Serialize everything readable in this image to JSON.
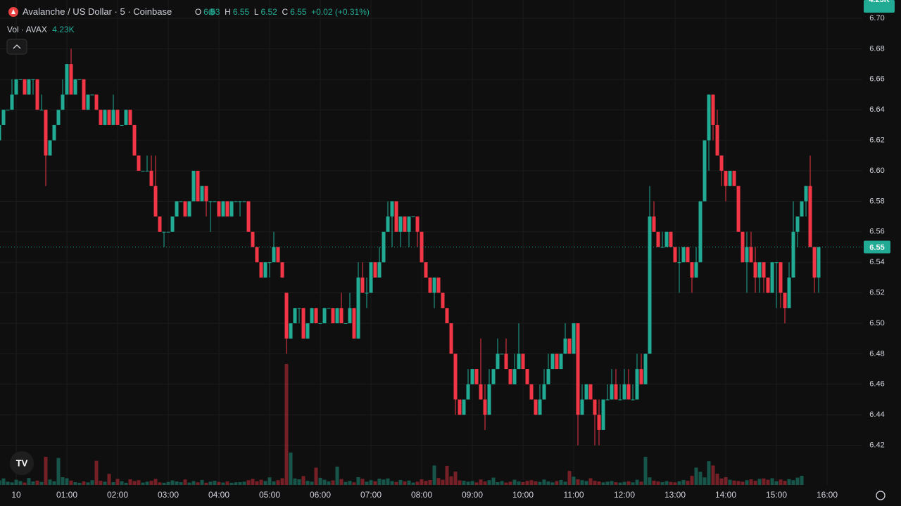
{
  "chart_data": {
    "type": "candlestick",
    "header": {
      "symbol": "Avalanche / US Dollar · 5 · Coinbase",
      "o": "O",
      "h": "H",
      "l": "L",
      "c": "C",
      "change": "+0.02 (+0.31%)",
      "vol_label": "Vol · AVAX",
      "vol_value": "4.23K"
    },
    "up_color": "#22ab94",
    "down_color": "#f23645",
    "grid": true,
    "ylim": [
      6.394,
      6.712
    ],
    "yticks": [
      6.42,
      6.44,
      6.46,
      6.48,
      {
        "value": 6.5,
        "label": "6.50"
      },
      6.52,
      6.54,
      6.56,
      6.58,
      {
        "value": 6.6,
        "label": "6.60"
      },
      6.62,
      6.64,
      6.66,
      6.68,
      {
        "value": 6.7,
        "label": "6.70"
      }
    ],
    "xlim": [
      0.1667,
      204.33
    ],
    "xticks": [
      {
        "value": 4,
        "label": "10"
      },
      {
        "value": 16,
        "label": "01:00"
      },
      {
        "value": 28,
        "label": "02:00"
      },
      {
        "value": 40,
        "label": "03:00"
      },
      {
        "value": 52,
        "label": "04:00"
      },
      {
        "value": 64,
        "label": "05:00"
      },
      {
        "value": 76,
        "label": "06:00"
      },
      {
        "value": 88,
        "label": "07:00"
      },
      {
        "value": 100,
        "label": "08:00"
      },
      {
        "value": 112,
        "label": "09:00"
      },
      {
        "value": 124,
        "label": "10:00"
      },
      {
        "value": 136,
        "label": "11:00"
      },
      {
        "value": 148,
        "label": "12:00"
      },
      {
        "value": 160,
        "label": "13:00"
      },
      {
        "value": 172,
        "label": "14:00"
      },
      {
        "value": 184,
        "label": "15:00"
      },
      {
        "value": 196,
        "label": "16:00"
      }
    ],
    "candles": [
      [
        6.62,
        6.63,
        6.62,
        6.63
      ],
      [
        6.63,
        6.64,
        6.63,
        6.64
      ],
      [
        6.64,
        6.64,
        6.64,
        6.64
      ],
      [
        6.64,
        6.66,
        6.64,
        6.65
      ],
      [
        6.65,
        6.66,
        6.65,
        6.66
      ],
      [
        6.66,
        6.66,
        6.66,
        6.66
      ],
      [
        6.66,
        6.66,
        6.65,
        6.65
      ],
      [
        6.65,
        6.66,
        6.65,
        6.66
      ],
      [
        6.66,
        6.66,
        6.65,
        6.66
      ],
      [
        6.66,
        6.66,
        6.64,
        6.64
      ],
      [
        6.64,
        6.65,
        6.64,
        6.64
      ],
      [
        6.64,
        6.64,
        6.59,
        6.61
      ],
      [
        6.61,
        6.62,
        6.61,
        6.62
      ],
      [
        6.62,
        6.63,
        6.62,
        6.63
      ],
      [
        6.63,
        6.64,
        6.63,
        6.64
      ],
      [
        6.64,
        6.66,
        6.64,
        6.65
      ],
      [
        6.65,
        6.67,
        6.65,
        6.67
      ],
      [
        6.67,
        6.68,
        6.65,
        6.65
      ],
      [
        6.65,
        6.66,
        6.65,
        6.66
      ],
      [
        6.66,
        6.66,
        6.66,
        6.66
      ],
      [
        6.66,
        6.66,
        6.64,
        6.64
      ],
      [
        6.64,
        6.65,
        6.64,
        6.65
      ],
      [
        6.65,
        6.65,
        6.65,
        6.65
      ],
      [
        6.65,
        6.65,
        6.64,
        6.64
      ],
      [
        6.64,
        6.64,
        6.63,
        6.63
      ],
      [
        6.63,
        6.64,
        6.63,
        6.64
      ],
      [
        6.64,
        6.64,
        6.63,
        6.63
      ],
      [
        6.63,
        6.65,
        6.63,
        6.64
      ],
      [
        6.64,
        6.64,
        6.63,
        6.63
      ],
      [
        6.63,
        6.63,
        6.63,
        6.63
      ],
      [
        6.63,
        6.64,
        6.63,
        6.64
      ],
      [
        6.64,
        6.64,
        6.63,
        6.63
      ],
      [
        6.63,
        6.63,
        6.61,
        6.61
      ],
      [
        6.61,
        6.61,
        6.6,
        6.6
      ],
      [
        6.6,
        6.6,
        6.6,
        6.6
      ],
      [
        6.6,
        6.61,
        6.6,
        6.6
      ],
      [
        6.6,
        6.61,
        6.59,
        6.59
      ],
      [
        6.59,
        6.61,
        6.57,
        6.57
      ],
      [
        6.57,
        6.57,
        6.56,
        6.56
      ],
      [
        6.56,
        6.56,
        6.55,
        6.56
      ],
      [
        6.56,
        6.56,
        6.56,
        6.56
      ],
      [
        6.56,
        6.57,
        6.56,
        6.57
      ],
      [
        6.57,
        6.58,
        6.57,
        6.58
      ],
      [
        6.58,
        6.58,
        6.58,
        6.58
      ],
      [
        6.58,
        6.58,
        6.57,
        6.57
      ],
      [
        6.57,
        6.58,
        6.57,
        6.58
      ],
      [
        6.58,
        6.6,
        6.58,
        6.6
      ],
      [
        6.6,
        6.6,
        6.58,
        6.58
      ],
      [
        6.58,
        6.59,
        6.58,
        6.59
      ],
      [
        6.59,
        6.59,
        6.57,
        6.58
      ],
      [
        6.58,
        6.58,
        6.56,
        6.58
      ],
      [
        6.58,
        6.58,
        6.58,
        6.58
      ],
      [
        6.58,
        6.58,
        6.57,
        6.57
      ],
      [
        6.57,
        6.58,
        6.57,
        6.58
      ],
      [
        6.58,
        6.58,
        6.57,
        6.57
      ],
      [
        6.57,
        6.58,
        6.57,
        6.58
      ],
      [
        6.58,
        6.58,
        6.58,
        6.58
      ],
      [
        6.58,
        6.58,
        6.57,
        6.58
      ],
      [
        6.58,
        6.58,
        6.58,
        6.58
      ],
      [
        6.58,
        6.58,
        6.56,
        6.56
      ],
      [
        6.56,
        6.56,
        6.55,
        6.55
      ],
      [
        6.55,
        6.55,
        6.54,
        6.54
      ],
      [
        6.54,
        6.54,
        6.53,
        6.53
      ],
      [
        6.53,
        6.54,
        6.53,
        6.54
      ],
      [
        6.54,
        6.54,
        6.53,
        6.54
      ],
      [
        6.54,
        6.56,
        6.54,
        6.55
      ],
      [
        6.55,
        6.55,
        6.54,
        6.54
      ],
      [
        6.54,
        6.54,
        6.53,
        6.53
      ],
      [
        6.52,
        6.52,
        6.48,
        6.49
      ],
      [
        6.49,
        6.5,
        6.49,
        6.5
      ],
      [
        6.5,
        6.51,
        6.5,
        6.51
      ],
      [
        6.51,
        6.51,
        6.5,
        6.51
      ],
      [
        6.51,
        6.51,
        6.49,
        6.49
      ],
      [
        6.49,
        6.5,
        6.49,
        6.5
      ],
      [
        6.5,
        6.51,
        6.5,
        6.51
      ],
      [
        6.51,
        6.51,
        6.5,
        6.5
      ],
      [
        6.5,
        6.5,
        6.5,
        6.5
      ],
      [
        6.5,
        6.51,
        6.5,
        6.51
      ],
      [
        6.51,
        6.51,
        6.51,
        6.51
      ],
      [
        6.51,
        6.51,
        6.5,
        6.5
      ],
      [
        6.5,
        6.51,
        6.5,
        6.51
      ],
      [
        6.51,
        6.52,
        6.5,
        6.5
      ],
      [
        6.5,
        6.5,
        6.5,
        6.5
      ],
      [
        6.5,
        6.52,
        6.5,
        6.51
      ],
      [
        6.51,
        6.51,
        6.49,
        6.49
      ],
      [
        6.49,
        6.54,
        6.49,
        6.53
      ],
      [
        6.53,
        6.54,
        6.52,
        6.52
      ],
      [
        6.52,
        6.53,
        6.51,
        6.52
      ],
      [
        6.52,
        6.54,
        6.52,
        6.54
      ],
      [
        6.54,
        6.54,
        6.53,
        6.53
      ],
      [
        6.53,
        6.55,
        6.53,
        6.54
      ],
      [
        6.54,
        6.56,
        6.54,
        6.56
      ],
      [
        6.56,
        6.58,
        6.56,
        6.57
      ],
      [
        6.57,
        6.58,
        6.55,
        6.58
      ],
      [
        6.58,
        6.58,
        6.56,
        6.56
      ],
      [
        6.56,
        6.57,
        6.55,
        6.57
      ],
      [
        6.57,
        6.57,
        6.56,
        6.56
      ],
      [
        6.56,
        6.57,
        6.55,
        6.57
      ],
      [
        6.57,
        6.57,
        6.57,
        6.57
      ],
      [
        6.57,
        6.57,
        6.55,
        6.56
      ],
      [
        6.56,
        6.56,
        6.54,
        6.54
      ],
      [
        6.54,
        6.54,
        6.53,
        6.53
      ],
      [
        6.53,
        6.53,
        6.52,
        6.52
      ],
      [
        6.52,
        6.53,
        6.51,
        6.53
      ],
      [
        6.53,
        6.53,
        6.52,
        6.52
      ],
      [
        6.52,
        6.52,
        6.51,
        6.51
      ],
      [
        6.51,
        6.51,
        6.5,
        6.5
      ],
      [
        6.5,
        6.5,
        6.48,
        6.48
      ],
      [
        6.48,
        6.48,
        6.44,
        6.45
      ],
      [
        6.45,
        6.45,
        6.44,
        6.44
      ],
      [
        6.44,
        6.45,
        6.44,
        6.45
      ],
      [
        6.45,
        6.47,
        6.45,
        6.46
      ],
      [
        6.46,
        6.47,
        6.46,
        6.47
      ],
      [
        6.47,
        6.47,
        6.46,
        6.46
      ],
      [
        6.46,
        6.49,
        6.45,
        6.45
      ],
      [
        6.45,
        6.46,
        6.43,
        6.44
      ],
      [
        6.44,
        6.47,
        6.44,
        6.46
      ],
      [
        6.46,
        6.47,
        6.46,
        6.47
      ],
      [
        6.47,
        6.49,
        6.47,
        6.48
      ],
      [
        6.48,
        6.48,
        6.48,
        6.48
      ],
      [
        6.48,
        6.49,
        6.47,
        6.47
      ],
      [
        6.47,
        6.47,
        6.46,
        6.46
      ],
      [
        6.46,
        6.48,
        6.46,
        6.47
      ],
      [
        6.47,
        6.5,
        6.47,
        6.48
      ],
      [
        6.48,
        6.48,
        6.47,
        6.47
      ],
      [
        6.47,
        6.47,
        6.46,
        6.46
      ],
      [
        6.46,
        6.46,
        6.45,
        6.45
      ],
      [
        6.45,
        6.45,
        6.44,
        6.44
      ],
      [
        6.44,
        6.46,
        6.44,
        6.45
      ],
      [
        6.45,
        6.47,
        6.45,
        6.46
      ],
      [
        6.46,
        6.48,
        6.46,
        6.47
      ],
      [
        6.47,
        6.48,
        6.47,
        6.48
      ],
      [
        6.48,
        6.48,
        6.47,
        6.47
      ],
      [
        6.47,
        6.48,
        6.47,
        6.48
      ],
      [
        6.48,
        6.5,
        6.48,
        6.49
      ],
      [
        6.49,
        6.49,
        6.48,
        6.48
      ],
      [
        6.48,
        6.5,
        6.48,
        6.5
      ],
      [
        6.5,
        6.5,
        6.42,
        6.44
      ],
      [
        6.44,
        6.46,
        6.44,
        6.45
      ],
      [
        6.45,
        6.46,
        6.45,
        6.46
      ],
      [
        6.46,
        6.46,
        6.45,
        6.45
      ],
      [
        6.45,
        6.45,
        6.42,
        6.44
      ],
      [
        6.44,
        6.45,
        6.42,
        6.43
      ],
      [
        6.43,
        6.45,
        6.43,
        6.45
      ],
      [
        6.45,
        6.46,
        6.45,
        6.45
      ],
      [
        6.45,
        6.47,
        6.45,
        6.46
      ],
      [
        6.46,
        6.47,
        6.45,
        6.45
      ],
      [
        6.45,
        6.46,
        6.45,
        6.45
      ],
      [
        6.45,
        6.47,
        6.45,
        6.46
      ],
      [
        6.46,
        6.47,
        6.45,
        6.45
      ],
      [
        6.45,
        6.46,
        6.45,
        6.45
      ],
      [
        6.45,
        6.48,
        6.45,
        6.47
      ],
      [
        6.47,
        6.48,
        6.46,
        6.46
      ],
      [
        6.46,
        6.48,
        6.46,
        6.48
      ],
      [
        6.48,
        6.59,
        6.48,
        6.57
      ],
      [
        6.57,
        6.58,
        6.56,
        6.56
      ],
      [
        6.56,
        6.56,
        6.55,
        6.55
      ],
      [
        6.55,
        6.56,
        6.55,
        6.55
      ],
      [
        6.55,
        6.56,
        6.55,
        6.56
      ],
      [
        6.56,
        6.56,
        6.55,
        6.55
      ],
      [
        6.55,
        6.55,
        6.54,
        6.54
      ],
      [
        6.54,
        6.55,
        6.52,
        6.54
      ],
      [
        6.54,
        6.55,
        6.54,
        6.55
      ],
      [
        6.55,
        6.55,
        6.54,
        6.54
      ],
      [
        6.54,
        6.54,
        6.52,
        6.53
      ],
      [
        6.53,
        6.55,
        6.53,
        6.54
      ],
      [
        6.54,
        6.58,
        6.54,
        6.58
      ],
      [
        6.58,
        6.62,
        6.58,
        6.62
      ],
      [
        6.62,
        6.65,
        6.6,
        6.65
      ],
      [
        6.65,
        6.65,
        6.62,
        6.63
      ],
      [
        6.63,
        6.64,
        6.61,
        6.61
      ],
      [
        6.61,
        6.61,
        6.59,
        6.6
      ],
      [
        6.6,
        6.6,
        6.58,
        6.59
      ],
      [
        6.59,
        6.6,
        6.59,
        6.6
      ],
      [
        6.6,
        6.6,
        6.59,
        6.59
      ],
      [
        6.59,
        6.59,
        6.56,
        6.56
      ],
      [
        6.56,
        6.56,
        6.54,
        6.54
      ],
      [
        6.54,
        6.56,
        6.52,
        6.55
      ],
      [
        6.55,
        6.56,
        6.54,
        6.54
      ],
      [
        6.54,
        6.55,
        6.52,
        6.53
      ],
      [
        6.53,
        6.54,
        6.52,
        6.54
      ],
      [
        6.54,
        6.54,
        6.52,
        6.53
      ],
      [
        6.53,
        6.53,
        6.52,
        6.52
      ],
      [
        6.52,
        6.54,
        6.52,
        6.54
      ],
      [
        6.54,
        6.54,
        6.51,
        6.54
      ],
      [
        6.54,
        6.54,
        6.51,
        6.52
      ],
      [
        6.52,
        6.52,
        6.5,
        6.51
      ],
      [
        6.51,
        6.54,
        6.51,
        6.53
      ],
      [
        6.53,
        6.58,
        6.53,
        6.56
      ],
      [
        6.56,
        6.57,
        6.55,
        6.57
      ],
      [
        6.57,
        6.58,
        6.57,
        6.58
      ],
      [
        6.58,
        6.59,
        6.57,
        6.59
      ],
      [
        6.59,
        6.61,
        6.55,
        6.55
      ],
      [
        6.55,
        6.55,
        6.52,
        6.53
      ],
      [
        6.53,
        6.55,
        6.52,
        6.55
      ]
    ],
    "volumes": [
      2.1,
      3.0,
      1.5,
      1.2,
      2.4,
      1.8,
      1.1,
      3.2,
      1.6,
      2.0,
      1.4,
      13.0,
      2.5,
      1.7,
      12.5,
      3.6,
      3.1,
      2.0,
      1.3,
      1.0,
      1.6,
      1.2,
      2.2,
      11.2,
      1.9,
      1.5,
      5.1,
      1.3,
      2.8,
      1.7,
      1.0,
      2.6,
      1.8,
      2.2,
      1.1,
      1.5,
      1.9,
      2.8,
      1.2,
      1.0,
      1.4,
      2.1,
      1.6,
      1.3,
      2.5,
      1.1,
      1.8,
      1.2,
      2.3,
      1.0,
      1.5,
      1.9,
      1.4,
      1.1,
      1.6,
      1.0,
      1.2,
      1.3,
      1.5,
      2.2,
      2.8,
      1.7,
      2.4,
      1.8,
      3.5,
      1.6,
      2.2,
      3.1,
      56.0,
      15.0,
      3.0,
      2.6,
      4.1,
      1.9,
      1.5,
      8.0,
      3.3,
      2.4,
      1.6,
      2.1,
      8.5,
      2.7,
      1.4,
      1.9,
      1.2,
      3.6,
      2.8,
      1.5,
      2.2,
      1.7,
      2.9,
      2.5,
      3.0,
      1.8,
      1.4,
      2.3,
      1.6,
      2.0,
      1.1,
      1.5,
      2.6,
      1.9,
      2.3,
      9.0,
      3.2,
      2.4,
      8.8,
      4.0,
      6.2,
      2.1,
      1.9,
      1.5,
      1.8,
      1.2,
      2.5,
      1.6,
      2.2,
      3.4,
      1.3,
      1.8,
      1.1,
      1.5,
      2.4,
      1.6,
      1.3,
      1.9,
      2.2,
      1.7,
      1.4,
      2.5,
      1.6,
      1.2,
      1.8,
      2.3,
      1.5,
      6.5,
      3.8,
      2.6,
      2.2,
      1.8,
      3.1,
      1.9,
      1.6,
      1.2,
      1.5,
      1.8,
      1.3,
      1.1,
      1.4,
      1.7,
      1.2,
      2.4,
      1.5,
      13.0,
      3.5,
      2.0,
      1.6,
      1.3,
      1.8,
      1.4,
      1.2,
      1.7,
      2.3,
      1.9,
      4.2,
      8.0,
      6.1,
      3.5,
      11.0,
      9.0,
      5.2,
      3.0,
      3.6,
      2.4,
      2.0,
      1.8,
      1.5,
      2.2,
      2.6,
      1.9,
      2.8,
      3.0,
      2.4,
      3.1,
      1.7,
      2.5,
      1.9,
      2.7,
      2.2,
      3.4,
      4.23
    ]
  }
}
